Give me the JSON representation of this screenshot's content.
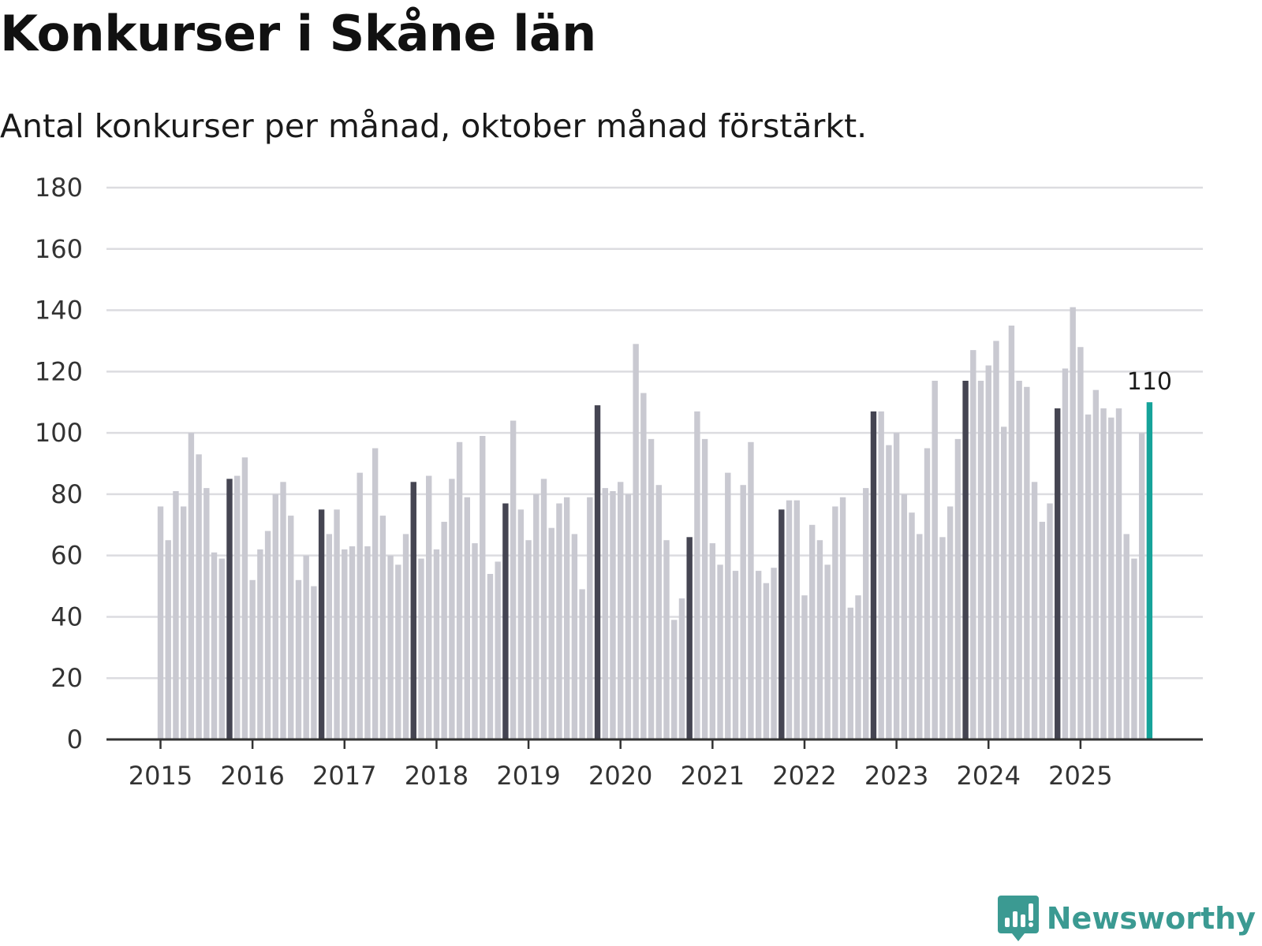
{
  "title": "Konkurser i Skåne län",
  "subtitle": "Antal konkurser per månad, oktober månad förstärkt.",
  "brand": {
    "name": "Newsworthy",
    "color": "#3b9a92",
    "icon": "bar-chart-bubble-icon"
  },
  "colors": {
    "regular": "#c9c9d1",
    "october": "#454552",
    "latest": "#16a39a",
    "grid": "#dcdce0",
    "axis": "#333333"
  },
  "chart_data": {
    "type": "bar",
    "title": "Konkurser i Skåne län",
    "subtitle": "Antal konkurser per månad, oktober månad förstärkt.",
    "xlabel": "",
    "ylabel": "",
    "ylim": [
      0,
      180
    ],
    "yticks": [
      0,
      20,
      40,
      60,
      80,
      100,
      120,
      140,
      160,
      180
    ],
    "grid": true,
    "start": "2015-01",
    "end": "2025-10",
    "x_tick_labels": [
      "2015",
      "2016",
      "2017",
      "2018",
      "2019",
      "2020",
      "2021",
      "2022",
      "2023",
      "2024",
      "2025"
    ],
    "highlight": "October of each year",
    "latest_label": "110",
    "series": [
      {
        "values": [
          76,
          65,
          81,
          76,
          100,
          93,
          82,
          61,
          59,
          85,
          86,
          92,
          52,
          62,
          68,
          80,
          84,
          73,
          52,
          60,
          50,
          75,
          67,
          75,
          62,
          63,
          87,
          63,
          95,
          73,
          60,
          57,
          67,
          84,
          59,
          86,
          62,
          71,
          85,
          97,
          79,
          64,
          99,
          54,
          58,
          77,
          104,
          75,
          65,
          80,
          85,
          69,
          77,
          79,
          67,
          49,
          79,
          109,
          82,
          81,
          84,
          80,
          129,
          113,
          98,
          83,
          65,
          39,
          46,
          66,
          107,
          98,
          64,
          57,
          87,
          55,
          83,
          97,
          55,
          51,
          56,
          75,
          78,
          78,
          47,
          70,
          65,
          57,
          76,
          79,
          43,
          47,
          82,
          107,
          107,
          96,
          100,
          80,
          74,
          67,
          95,
          117,
          66,
          76,
          98,
          117,
          127,
          117,
          122,
          130,
          102,
          135,
          117,
          115,
          84,
          71,
          77,
          108,
          121,
          141,
          128,
          106,
          114,
          108,
          105,
          108,
          67,
          59,
          100,
          110
        ]
      }
    ]
  }
}
